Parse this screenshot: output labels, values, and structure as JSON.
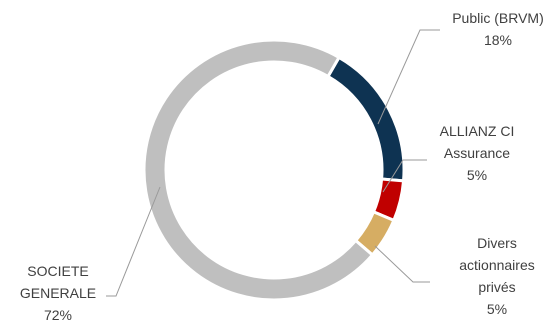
{
  "chart_data": {
    "type": "pie",
    "style": "donut",
    "legend": "none",
    "slices": [
      {
        "label": [
          "Public (BRVM)"
        ],
        "value": 18,
        "display": "18%",
        "color": "#0e3352"
      },
      {
        "label": [
          "ALLIANZ CI",
          "Assurance"
        ],
        "value": 5,
        "display": "5%",
        "color": "#c00000"
      },
      {
        "label": [
          "Divers",
          "actionnaires",
          "privés"
        ],
        "value": 5,
        "display": "5%",
        "color": "#d6ad63"
      },
      {
        "label": [
          "SOCIETE",
          "GENERALE"
        ],
        "value": 72,
        "display": "72%",
        "color": "#bfbfbf"
      }
    ]
  }
}
